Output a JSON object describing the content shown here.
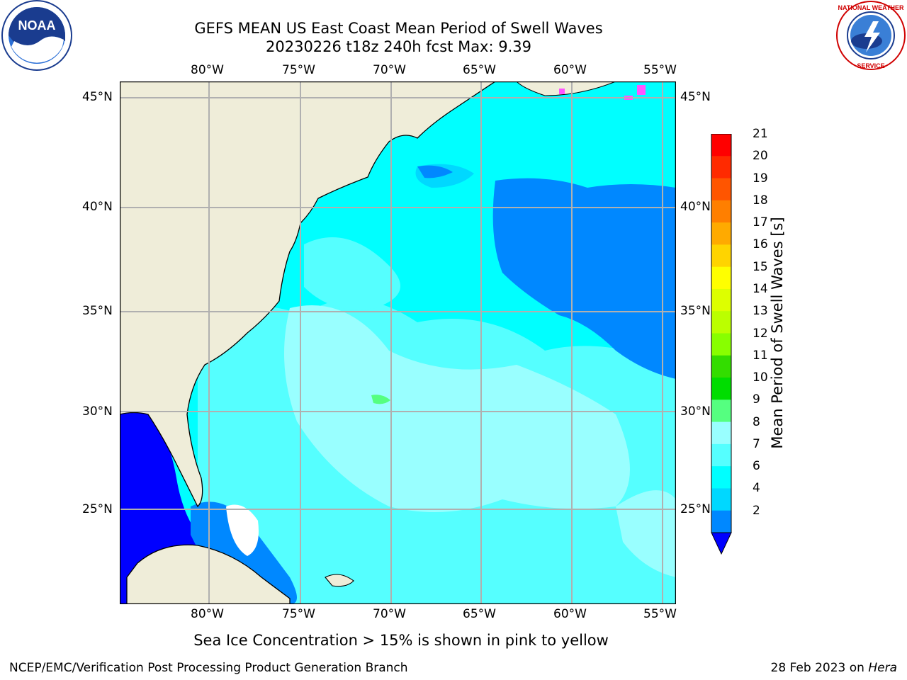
{
  "title": {
    "line1": "GEFS MEAN US East Coast Mean Period of Swell Waves",
    "line2": "20230226 t18z 240h fcst   Max: 9.39"
  },
  "logos": {
    "left": "NOAA",
    "right_text_top": "NATIONAL WEATHER",
    "right_text_side": "SERVICE"
  },
  "map": {
    "lon_labels": [
      "80°W",
      "75°W",
      "70°W",
      "65°W",
      "60°W",
      "55°W"
    ],
    "lat_labels": [
      "45°N",
      "40°N",
      "35°N",
      "30°N",
      "25°N"
    ],
    "land_color": "#efedd9",
    "grid_color": "#b0b0b0"
  },
  "colorbar": {
    "title": "Mean Period of Swell Waves [s]",
    "ticks": [
      "2",
      "4",
      "6",
      "7",
      "8",
      "9",
      "10",
      "11",
      "12",
      "13",
      "14",
      "15",
      "16",
      "17",
      "18",
      "19",
      "20",
      "21"
    ],
    "tick_labels": [
      "21",
      "20",
      "19",
      "18",
      "17",
      "16",
      "15",
      "14",
      "13",
      "12",
      "11",
      "10",
      "9",
      "8",
      "7",
      "6",
      "4",
      "2"
    ],
    "colors": [
      "#ff0000",
      "#ff2a00",
      "#ff5500",
      "#ff7f00",
      "#ffaa00",
      "#ffd400",
      "#ffff00",
      "#ddff00",
      "#bbff00",
      "#88ff00",
      "#33dd00",
      "#00dd00",
      "#55ff80",
      "#99ffff",
      "#55ffff",
      "#00ffff",
      "#00d8ff",
      "#0088ff"
    ],
    "extend_color": "#0000ff"
  },
  "ice_note": "Sea Ice Concentration > 15% is shown in pink to yellow",
  "footer": {
    "left": "NCEP/EMC/Verification Post Processing Product Generation Branch",
    "date": "28 Feb 2023 on ",
    "host": "Hera"
  }
}
